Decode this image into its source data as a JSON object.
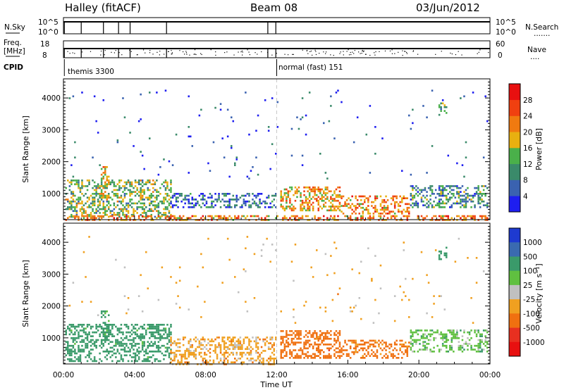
{
  "header": {
    "station": "Halley (fitACF)",
    "beam": "Beam 08",
    "date": "03/Jun/2012"
  },
  "top_panels": {
    "nsky_label": "N.Sky",
    "nsky_top_tick": "10^5",
    "nsky_bottom_tick": "10^0",
    "nsearch_label": "N.Search",
    "nsearch_top_tick": "10^5",
    "nsearch_bottom_tick": "10^0",
    "freq_label_1": "Freq.",
    "freq_label_2": "[MHz]",
    "freq_top_tick": "18",
    "freq_bottom_tick": "8",
    "nave_label": "Nave",
    "nave_top_tick": "60",
    "nave_bottom_tick": "0",
    "cpid_label": "CPID",
    "cpid_segment_1": "themis 3300",
    "cpid_segment_2": "normal (fast) 151",
    "cpid_switch_hour": 12.0,
    "scan_gap_hours": [
      0.05,
      1.0,
      2.25,
      3.1,
      3.75,
      5.8,
      11.5,
      11.95
    ]
  },
  "chart_data": [
    {
      "type": "heatmap",
      "parameter": "power",
      "ylabel": "Slant Range [km]",
      "xlabel": "",
      "xlim": [
        0,
        24
      ],
      "ylim": [
        180,
        4600
      ],
      "yticks": [
        1000,
        2000,
        3000,
        4000
      ],
      "colorbar": {
        "label": "Power [dB]",
        "range": [
          0,
          32
        ],
        "ticks": [
          "4",
          "8",
          "12",
          "16",
          "20",
          "24",
          "28"
        ],
        "colors": [
          "#1e1ef0",
          "#3a62b0",
          "#3a8a6a",
          "#4ab04a",
          "#e8b010",
          "#f07a10",
          "#f04010",
          "#e81010"
        ]
      },
      "echo_regions": [
        {
          "t0": 0.1,
          "t1": 6.0,
          "r0": 300,
          "r1": 1450,
          "value": 14
        },
        {
          "t0": 2.1,
          "t1": 2.6,
          "r0": 900,
          "r1": 1900,
          "value": 18
        },
        {
          "t0": 6.0,
          "t1": 11.9,
          "r0": 600,
          "r1": 1050,
          "value": 6
        },
        {
          "t0": 0.1,
          "t1": 23.9,
          "r0": 200,
          "r1": 380,
          "value": 22
        },
        {
          "t0": 12.2,
          "t1": 15.5,
          "r0": 500,
          "r1": 1250,
          "value": 20
        },
        {
          "t0": 15.5,
          "t1": 19.5,
          "r0": 400,
          "r1": 1000,
          "value": 22
        },
        {
          "t0": 19.5,
          "t1": 23.9,
          "r0": 600,
          "r1": 1300,
          "value": 10
        },
        {
          "t0": 21.1,
          "t1": 21.6,
          "r0": 3500,
          "r1": 3900,
          "value": 12
        },
        {
          "t0": 0.1,
          "t1": 23.9,
          "r0": 1500,
          "r1": 4300,
          "value": 5
        }
      ]
    },
    {
      "type": "heatmap",
      "parameter": "velocity",
      "ylabel": "Slant Range [km]",
      "xlabel": "Time UT",
      "xlim": [
        0,
        24
      ],
      "ylim": [
        180,
        4600
      ],
      "yticks": [
        1000,
        2000,
        3000,
        4000
      ],
      "xticks": [
        "00:00",
        "04:00",
        "08:00",
        "12:00",
        "16:00",
        "20:00",
        "00:00"
      ],
      "colorbar": {
        "label": "Velocity [m s⁻¹]",
        "ticks": [
          "1000",
          "500",
          "100",
          "25",
          "-25",
          "-100",
          "-500",
          "-1000"
        ],
        "colors": [
          "#1e3ad0",
          "#3a6ab0",
          "#3a9a6a",
          "#60c040",
          "#c0c0c0",
          "#f0a020",
          "#f07010",
          "#e83020",
          "#e81010"
        ]
      },
      "echo_regions": [
        {
          "t0": 0.1,
          "t1": 6.0,
          "r0": 300,
          "r1": 1450,
          "value": 250
        },
        {
          "t0": 2.1,
          "t1": 2.6,
          "r0": 900,
          "r1": 1900,
          "value": 150
        },
        {
          "t0": 6.0,
          "t1": 11.9,
          "r0": 200,
          "r1": 1050,
          "value": -60
        },
        {
          "t0": 12.2,
          "t1": 15.5,
          "r0": 400,
          "r1": 1250,
          "value": -300
        },
        {
          "t0": 15.5,
          "t1": 19.5,
          "r0": 400,
          "r1": 1000,
          "value": -200
        },
        {
          "t0": 19.5,
          "t1": 23.9,
          "r0": 600,
          "r1": 1300,
          "value": 60
        },
        {
          "t0": 21.1,
          "t1": 21.6,
          "r0": 3500,
          "r1": 3900,
          "value": 200
        },
        {
          "t0": 0.1,
          "t1": 23.9,
          "r0": 1500,
          "r1": 4300,
          "value": -40
        }
      ]
    }
  ]
}
